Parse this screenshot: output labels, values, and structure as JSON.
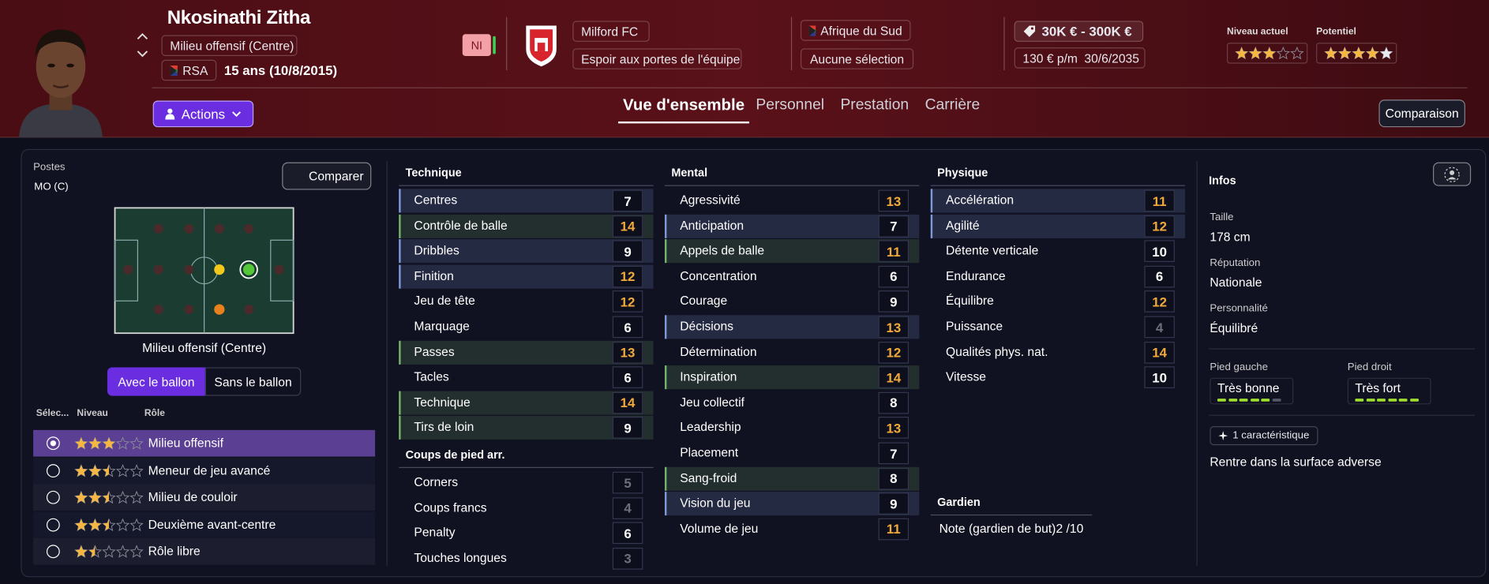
{
  "header": {
    "name": "Nkosinathi Zitha",
    "position": "Milieu offensif (Centre)",
    "nation_code": "RSA",
    "age": "15 ans (10/8/2015)",
    "badge": "NI",
    "club": "Milford FC",
    "club_status": "Espoir aux portes de l'équipe",
    "country": "Afrique du Sud",
    "selection": "Aucune sélection",
    "value": "30K € - 300K €",
    "wage": "130 € p/m",
    "contract_end": "30/6/2035",
    "current_label": "Niveau actuel",
    "current_stars": 3,
    "potential_label": "Potentiel",
    "potential_stars": [
      4,
      5
    ],
    "actions": "Actions",
    "tabs": [
      "Vue d'ensemble",
      "Personnel",
      "Prestation",
      "Carrière"
    ],
    "compare_button": "Comparaison"
  },
  "positions": {
    "label": "Postes",
    "value": "MO (C)",
    "compare": "Comparer",
    "pitch_caption": "Milieu offensif (Centre)",
    "toggle": [
      "Avec le ballon",
      "Sans le ballon"
    ],
    "headers": [
      "Sélec...",
      "Niveau",
      "Rôle"
    ],
    "selected_role": 0,
    "roles": [
      {
        "name": "Milieu offensif",
        "stars": 3
      },
      {
        "name": "Meneur de jeu avancé",
        "stars": 2.5
      },
      {
        "name": "Milieu de couloir",
        "stars": 2.5
      },
      {
        "name": "Deuxième avant-centre",
        "stars": 2.5
      },
      {
        "name": "Rôle libre",
        "stars": 1.5
      }
    ]
  },
  "attributes": {
    "technique": {
      "title": "Technique",
      "rows": [
        {
          "name": "Centres",
          "value": 7,
          "highlight": "#7f98d8"
        },
        {
          "name": "Contrôle de balle",
          "value": 14,
          "highlight": "#74b36a"
        },
        {
          "name": "Dribbles",
          "value": 9,
          "highlight": "#7f98d8"
        },
        {
          "name": "Finition",
          "value": 12,
          "highlight": "#7f98d8"
        },
        {
          "name": "Jeu de tête",
          "value": 12
        },
        {
          "name": "Marquage",
          "value": 6
        },
        {
          "name": "Passes",
          "value": 13,
          "highlight": "#74b36a"
        },
        {
          "name": "Tacles",
          "value": 6
        },
        {
          "name": "Technique",
          "value": 14,
          "highlight": "#74b36a"
        },
        {
          "name": "Tirs de loin",
          "value": 9,
          "highlight": "#74b36a"
        }
      ]
    },
    "set_pieces": {
      "title": "Coups de pied arr.",
      "rows": [
        {
          "name": "Corners",
          "value": 5
        },
        {
          "name": "Coups francs",
          "value": 4
        },
        {
          "name": "Penalty",
          "value": 6
        },
        {
          "name": "Touches longues",
          "value": 3
        }
      ]
    },
    "mental": {
      "title": "Mental",
      "rows": [
        {
          "name": "Agressivité",
          "value": 13
        },
        {
          "name": "Anticipation",
          "value": 7,
          "highlight": "#7f98d8"
        },
        {
          "name": "Appels de balle",
          "value": 11,
          "highlight": "#74b36a"
        },
        {
          "name": "Concentration",
          "value": 6
        },
        {
          "name": "Courage",
          "value": 9
        },
        {
          "name": "Décisions",
          "value": 13,
          "highlight": "#7f98d8"
        },
        {
          "name": "Détermination",
          "value": 12
        },
        {
          "name": "Inspiration",
          "value": 14,
          "highlight": "#74b36a"
        },
        {
          "name": "Jeu collectif",
          "value": 8
        },
        {
          "name": "Leadership",
          "value": 13
        },
        {
          "name": "Placement",
          "value": 7
        },
        {
          "name": "Sang-froid",
          "value": 8,
          "highlight": "#74b36a"
        },
        {
          "name": "Vision du jeu",
          "value": 9,
          "highlight": "#7f98d8"
        },
        {
          "name": "Volume de jeu",
          "value": 11
        }
      ]
    },
    "physique": {
      "title": "Physique",
      "rows": [
        {
          "name": "Accélération",
          "value": 11,
          "highlight": "#7f98d8"
        },
        {
          "name": "Agilité",
          "value": 12,
          "highlight": "#7f98d8"
        },
        {
          "name": "Détente verticale",
          "value": 10
        },
        {
          "name": "Endurance",
          "value": 6
        },
        {
          "name": "Équilibre",
          "value": 12
        },
        {
          "name": "Puissance",
          "value": 4
        },
        {
          "name": "Qualités phys. nat.",
          "value": 14
        },
        {
          "name": "Vitesse",
          "value": 10
        }
      ]
    },
    "goalkeeper": {
      "title": "Gardien",
      "label": "Note (gardien de but)",
      "value": "2 /10"
    }
  },
  "infos": {
    "title": "Infos",
    "fields": [
      {
        "label": "Taille",
        "value": "178 cm"
      },
      {
        "label": "Réputation",
        "value": "Nationale"
      },
      {
        "label": "Personnalité",
        "value": "Équilibré"
      }
    ],
    "feet": [
      {
        "label": "Pied gauche",
        "value": "Très bonne",
        "bars": 5
      },
      {
        "label": "Pied droit",
        "value": "Très fort",
        "bars": 6
      }
    ],
    "traits_count": "1 caractéristique",
    "trait": "Rentre dans la surface adverse"
  }
}
